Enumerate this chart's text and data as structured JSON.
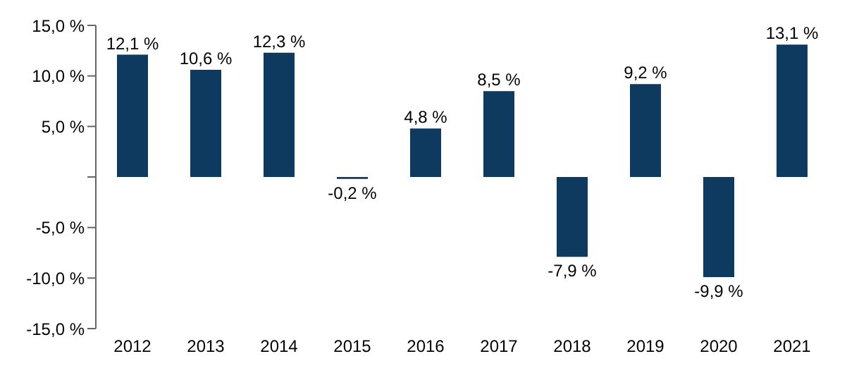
{
  "chart_data": {
    "type": "bar",
    "categories": [
      "2012",
      "2013",
      "2014",
      "2015",
      "2016",
      "2017",
      "2018",
      "2019",
      "2020",
      "2021"
    ],
    "values": [
      12.1,
      10.6,
      12.3,
      -0.2,
      4.8,
      8.5,
      -7.9,
      9.2,
      -9.9,
      13.1
    ],
    "value_labels": [
      "12,1 %",
      "10,6 %",
      "12,3 %",
      "-0,2 %",
      "4,8 %",
      "8,5 %",
      "-7,9 %",
      "9,2 %",
      "-9,9 %",
      "13,1 %"
    ],
    "color": "#0e3a60",
    "ylim": [
      -15,
      15
    ],
    "yticks": [
      {
        "value": -15,
        "label": "-15,0 %"
      },
      {
        "value": -10,
        "label": "-10,0 %"
      },
      {
        "value": -5,
        "label": "-5,0 %"
      },
      {
        "value": 0,
        "label": null
      },
      {
        "value": 5,
        "label": "5,0 %"
      },
      {
        "value": 10,
        "label": "10,0 %"
      },
      {
        "value": 15,
        "label": "15,0 %"
      }
    ]
  }
}
